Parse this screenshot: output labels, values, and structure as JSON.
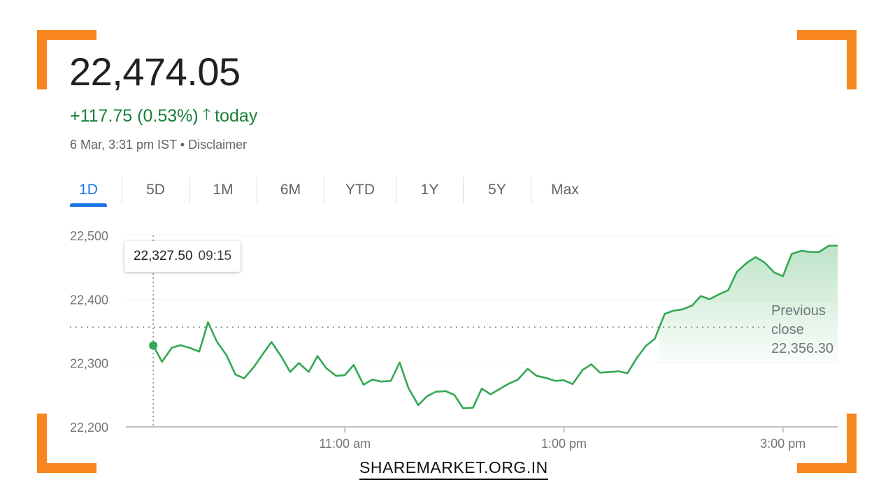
{
  "header": {
    "price": "22,474.05",
    "change": "+117.75 (0.53%)",
    "direction_icon": "arrow-up-icon",
    "change_suffix": "today",
    "timestamp": "6 Mar, 3:31 pm IST",
    "separator": "•",
    "disclaimer": "Disclaimer"
  },
  "tabs": [
    {
      "label": "1D",
      "active": true
    },
    {
      "label": "5D",
      "active": false
    },
    {
      "label": "1M",
      "active": false
    },
    {
      "label": "6M",
      "active": false
    },
    {
      "label": "YTD",
      "active": false
    },
    {
      "label": "1Y",
      "active": false
    },
    {
      "label": "5Y",
      "active": false
    },
    {
      "label": "Max",
      "active": false
    }
  ],
  "tooltip": {
    "value": "22,327.50",
    "time": "09:15"
  },
  "colors": {
    "up": "#188038",
    "line": "#34a853",
    "accent": "#1a73e8",
    "frame": "#f7861e"
  },
  "brand": "SHAREMARKET.ORG.IN",
  "chart_data": {
    "type": "line",
    "y_ticks": [
      22200,
      22300,
      22400,
      22500
    ],
    "y_tick_labels": [
      "22,200",
      "22,300",
      "22,400",
      "22,500"
    ],
    "ylim": [
      22200,
      22500
    ],
    "xlim": [
      9.0,
      15.5
    ],
    "x_ticks": [
      11,
      13,
      15
    ],
    "x_tick_labels": [
      "11:00 am",
      "1:00 pm",
      "3:00 pm"
    ],
    "previous_close": 22356.3,
    "previous_close_label": [
      "Previous",
      "close",
      "22,356.30"
    ],
    "grid": false,
    "series": [
      {
        "x": [
          9.25,
          9.33,
          9.42,
          9.5,
          9.58,
          9.67,
          9.75,
          9.83,
          9.92,
          10.0,
          10.08,
          10.17,
          10.25,
          10.33,
          10.42,
          10.5,
          10.58,
          10.67,
          10.75,
          10.83,
          10.92,
          11.0,
          11.08,
          11.17,
          11.25,
          11.33,
          11.42,
          11.5,
          11.58,
          11.67,
          11.75,
          11.83,
          11.92,
          12.0,
          12.08,
          12.17,
          12.25,
          12.33,
          12.42,
          12.5,
          12.58,
          12.67,
          12.75,
          12.83,
          12.92,
          13.0,
          13.08,
          13.17,
          13.25,
          13.33,
          13.42,
          13.5,
          13.58,
          13.67,
          13.75,
          13.83,
          13.92,
          14.0,
          14.08,
          14.17,
          14.25,
          14.33,
          14.42,
          14.5,
          14.58,
          14.67,
          14.75,
          14.83,
          14.92,
          15.0,
          15.08,
          15.17,
          15.25,
          15.33,
          15.42,
          15.5
        ],
        "values": [
          22327.5,
          22302,
          22324,
          22328,
          22324,
          22318,
          22364,
          22334,
          22312,
          22282,
          22276,
          22294,
          22314,
          22333,
          22310,
          22286,
          22300,
          22286,
          22311,
          22292,
          22280,
          22281,
          22297,
          22266,
          22274,
          22271,
          22272,
          22301,
          22261,
          22234,
          22248,
          22255,
          22256,
          22250,
          22229,
          22230,
          22260,
          22251,
          22260,
          22268,
          22274,
          22291,
          22280,
          22277,
          22272,
          22273,
          22267,
          22289,
          22298,
          22285,
          22286,
          22287,
          22284,
          22309,
          22327,
          22338,
          22377,
          22382,
          22384,
          22390,
          22405,
          22400,
          22408,
          22414,
          22443,
          22457,
          22466,
          22458,
          22442,
          22436,
          22471,
          22476,
          22474,
          22474,
          22484,
          22484
        ]
      }
    ]
  }
}
